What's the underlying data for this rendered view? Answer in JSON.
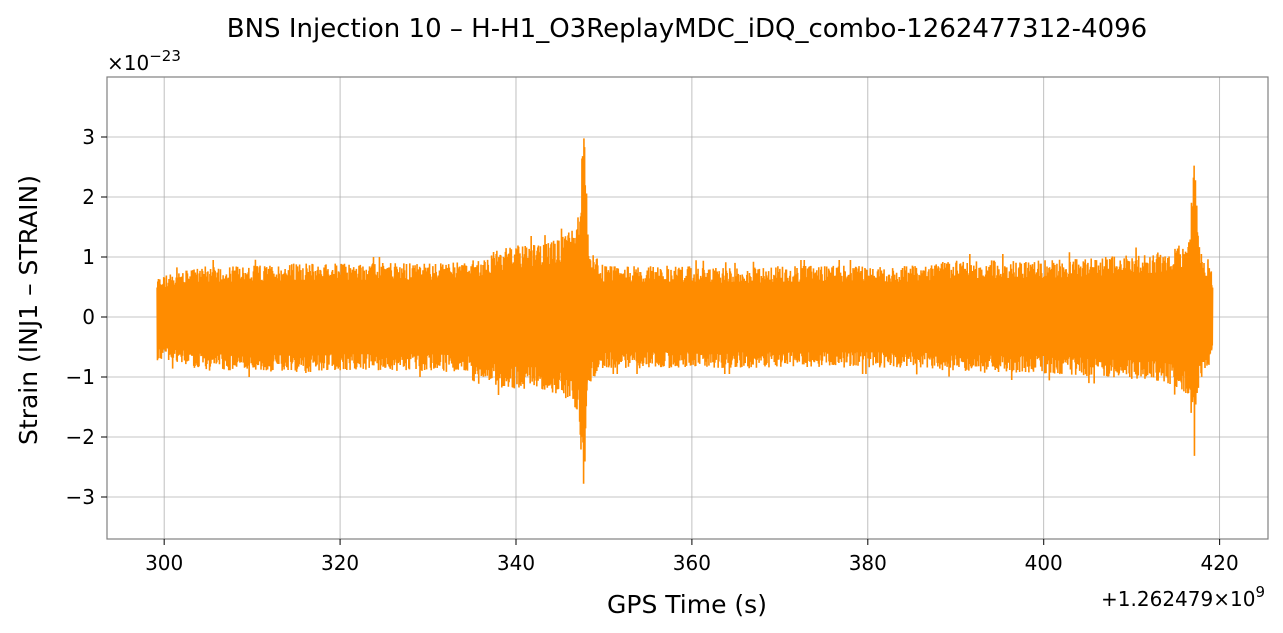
{
  "chart_data": {
    "type": "line",
    "title": "BNS Injection 10 – H-H1_O3ReplayMDC_iDQ_combo-1262477312-4096",
    "xlabel": "GPS Time (s)",
    "ylabel": "Strain (INJ1 – STRAIN)",
    "x_offset_label": "+1.262479×10",
    "x_offset_exp": "9",
    "y_scale_label": "×10",
    "y_scale_exp": "−23",
    "xlim": [
      293.5,
      425.5
    ],
    "ylim": [
      -3.7,
      4.0
    ],
    "x_ticks": [
      300,
      320,
      340,
      360,
      380,
      400,
      420
    ],
    "y_ticks": [
      -3,
      -2,
      -1,
      0,
      1,
      2,
      3
    ],
    "x_tick_labels": [
      "300",
      "320",
      "340",
      "360",
      "380",
      "400",
      "420"
    ],
    "y_tick_labels": [
      "−3",
      "−2",
      "−1",
      "0",
      "1",
      "2",
      "3"
    ],
    "grid": true,
    "colors": {
      "line": "#ff8c00",
      "grid": "#b0b0b0",
      "frame": "#808080"
    },
    "series": [
      {
        "envelope": {
          "x": [
            299.2,
            305,
            310,
            315,
            320,
            325,
            330,
            335,
            338,
            341,
            343,
            345,
            346.5,
            347.2,
            347.7,
            348.3,
            350,
            355,
            360,
            365,
            370,
            375,
            380,
            385,
            390,
            395,
            400,
            405,
            410,
            413,
            415,
            416.5,
            417.2,
            417.6,
            418.5,
            419.2
          ],
          "upper": [
            0.75,
            0.95,
            0.95,
            1.0,
            1.0,
            1.0,
            1.0,
            1.05,
            1.25,
            1.35,
            1.35,
            1.45,
            1.65,
            2.0,
            3.6,
            1.25,
            0.95,
            0.95,
            0.95,
            0.9,
            0.95,
            0.95,
            0.95,
            0.95,
            1.05,
            1.05,
            1.05,
            1.1,
            1.15,
            1.2,
            1.3,
            1.4,
            3.1,
            1.4,
            1.0,
            0.85
          ],
          "lower": [
            -0.8,
            -1.0,
            -1.0,
            -1.05,
            -1.0,
            -1.0,
            -1.0,
            -1.05,
            -1.3,
            -1.35,
            -1.35,
            -1.45,
            -1.6,
            -2.0,
            -3.3,
            -1.25,
            -0.95,
            -0.95,
            -0.95,
            -0.95,
            -0.95,
            -0.95,
            -0.95,
            -0.95,
            -1.0,
            -1.05,
            -1.05,
            -1.1,
            -1.15,
            -1.2,
            -1.3,
            -1.45,
            -2.4,
            -1.3,
            -0.95,
            -0.85
          ]
        }
      }
    ]
  }
}
